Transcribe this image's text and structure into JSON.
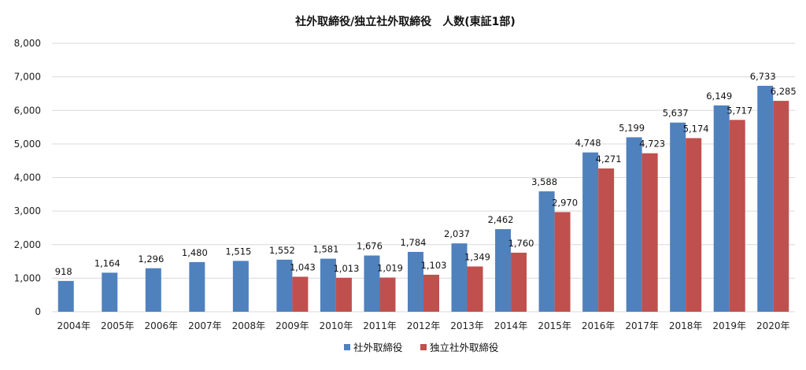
{
  "chart_data": {
    "type": "bar",
    "title": "社外取締役/独立社外取締役　人数(東証1部)",
    "categories": [
      "2004年",
      "2005年",
      "2006年",
      "2007年",
      "2008年",
      "2009年",
      "2010年",
      "2011年",
      "2012年",
      "2013年",
      "2014年",
      "2015年",
      "2016年",
      "2017年",
      "2018年",
      "2019年",
      "2020年"
    ],
    "series": [
      {
        "name": "社外取締役",
        "color": "#4f81bd",
        "values": [
          918,
          1164,
          1296,
          1480,
          1515,
          1552,
          1581,
          1676,
          1784,
          2037,
          2462,
          3588,
          4748,
          5199,
          5637,
          6149,
          6733
        ],
        "labels": [
          "918",
          "1,164",
          "1,296",
          "1,480",
          "1,515",
          "1,552",
          "1,581",
          "1,676",
          "1,784",
          "2,037",
          "2,462",
          "3,588",
          "4,748",
          "5,199",
          "5,637",
          "6,149",
          "6,733"
        ]
      },
      {
        "name": "独立社外取締役",
        "color": "#c0504d",
        "values": [
          null,
          null,
          null,
          null,
          null,
          1043,
          1013,
          1019,
          1103,
          1349,
          1760,
          2970,
          4271,
          4723,
          5174,
          5717,
          6285
        ],
        "labels": [
          null,
          null,
          null,
          null,
          null,
          "1,043",
          "1,013",
          "1,019",
          "1,103",
          "1,349",
          "1,760",
          "2,970",
          "4,271",
          "4,723",
          "5,174",
          "5,717",
          "6,285"
        ]
      }
    ],
    "ylim": [
      0,
      8000
    ],
    "yticks": [
      0,
      1000,
      2000,
      3000,
      4000,
      5000,
      6000,
      7000,
      8000
    ],
    "ytick_labels": [
      "0",
      "1,000",
      "2,000",
      "3,000",
      "4,000",
      "5,000",
      "6,000",
      "7,000",
      "8,000"
    ],
    "xlabel": "",
    "ylabel": "",
    "grid": true,
    "legend": "bottom"
  }
}
